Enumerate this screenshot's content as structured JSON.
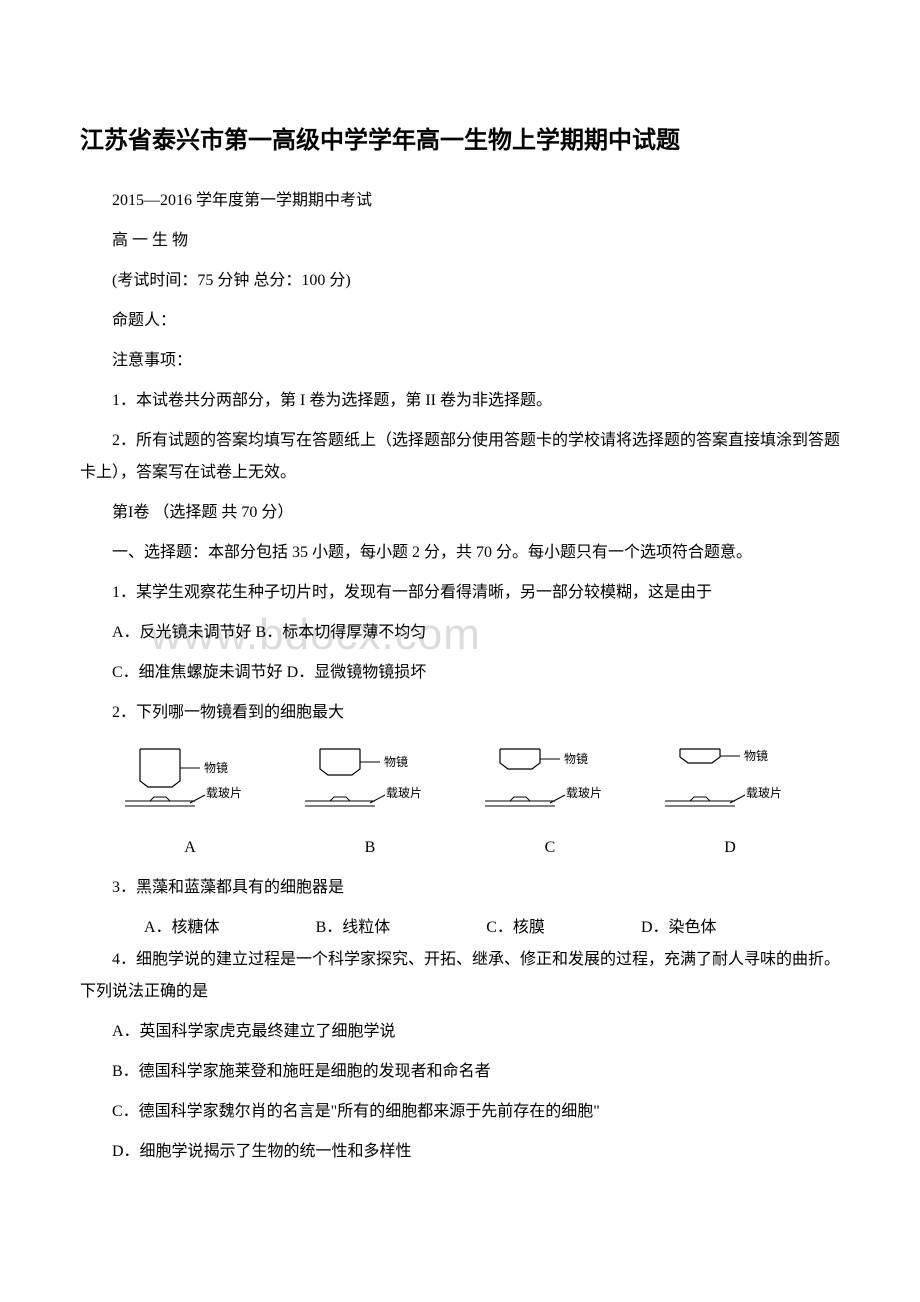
{
  "title": "江苏省泰兴市第一高级中学学年高一生物上学期期中试题",
  "header": {
    "semester": "2015—2016 学年度第一学期期中考试",
    "subject": "高 一 生 物",
    "exam_info": "(考试时间：75 分钟 总分：100 分)",
    "author": "命题人：",
    "notice_title": "注意事项：",
    "notice1": "1．本试卷共分两部分，第 I 卷为选择题，第 II 卷为非选择题。",
    "notice2": "2．所有试题的答案均填写在答题纸上（选择题部分使用答题卡的学校请将选择题的答案直接填涂到答题卡上），答案写在试卷上无效。",
    "section1": "第I卷 （选择题 共 70 分）",
    "section1_intro": "一、选择题：本部分包括 35 小题，每小题 2 分，共 70 分。每小题只有一个选项符合题意。"
  },
  "q1": {
    "stem": "1．某学生观察花生种子切片时，发现有一部分看得清晰，另一部分较模糊，这是由于",
    "optA": "A．反光镜未调节好 B．标本切得厚薄不均匀",
    "optC": "C．细准焦螺旋未调节好 D．显微镜物镜损坏"
  },
  "q2": {
    "stem": "2．下列哪一物镜看到的细胞最大",
    "diagrams": {
      "lens_label": "物镜",
      "slide_label": "载玻片",
      "items": [
        "A",
        "B",
        "C",
        "D"
      ],
      "lens_heights": [
        38,
        26,
        20,
        14
      ],
      "gaps": [
        14,
        26,
        32,
        38
      ],
      "stroke": "#000000",
      "fontsize": 12
    }
  },
  "q3": {
    "stem": "3．黑藻和蓝藻都具有的细胞器是",
    "opts": {
      "A": "A．核糖体",
      "B": "B．线粒体",
      "C": "C．核膜",
      "D": "D．染色体"
    }
  },
  "q4": {
    "stem": "4．细胞学说的建立过程是一个科学家探究、开拓、继承、修正和发展的过程，充满了耐人寻味的曲折。下列说法正确的是",
    "optA": "A．英国科学家虎克最终建立了细胞学说",
    "optB": "B．德国科学家施莱登和施旺是细胞的发现者和命名者",
    "optC": "C．德国科学家魏尔肖的名言是\"所有的细胞都来源于先前存在的细胞\"",
    "optD": "D．细胞学说揭示了生物的统一性和多样性"
  },
  "watermark": "www.bdocx.com"
}
